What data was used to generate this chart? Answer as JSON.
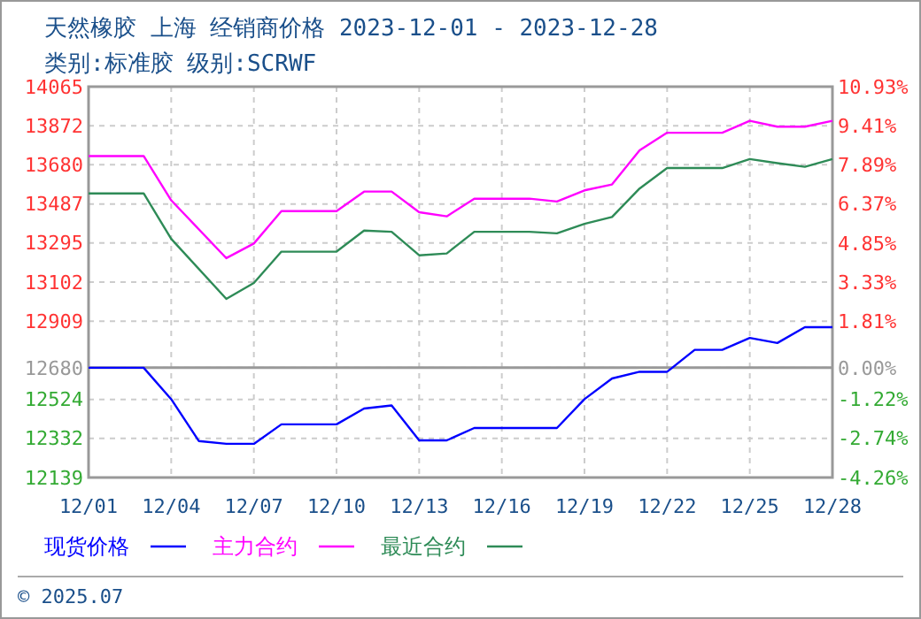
{
  "chart_data": {
    "type": "line",
    "title": "天然橡胶 上海 经销商价格 2023-12-01 - 2023-12-28",
    "subtitle": "类别:标准胶 级别:SCRWF",
    "xlim": [
      "2023-12-01",
      "2023-12-28"
    ],
    "xticks": [
      {
        "value": "2023-12-01",
        "label": "12/01"
      },
      {
        "value": "2023-12-04",
        "label": "12/04"
      },
      {
        "value": "2023-12-07",
        "label": "12/07"
      },
      {
        "value": "2023-12-10",
        "label": "12/10"
      },
      {
        "value": "2023-12-13",
        "label": "12/13"
      },
      {
        "value": "2023-12-16",
        "label": "12/16"
      },
      {
        "value": "2023-12-19",
        "label": "12/19"
      },
      {
        "value": "2023-12-22",
        "label": "12/22"
      },
      {
        "value": "2023-12-25",
        "label": "12/25"
      },
      {
        "value": "2023-12-28",
        "label": "12/28"
      }
    ],
    "ylim": [
      12139,
      14065
    ],
    "yticks": [
      12139,
      12332,
      12524,
      12680,
      12909,
      13102,
      13295,
      13487,
      13680,
      13872,
      14065
    ],
    "y2lim": [
      -4.26,
      10.93
    ],
    "y2ticks": [
      {
        "value": -4.26,
        "label": "-4.26%"
      },
      {
        "value": -2.74,
        "label": "-2.74%"
      },
      {
        "value": -1.22,
        "label": "-1.22%"
      },
      {
        "value": 0,
        "label": "0.00%"
      },
      {
        "value": 1.81,
        "label": "1.81%"
      },
      {
        "value": 3.33,
        "label": "3.33%"
      },
      {
        "value": 4.85,
        "label": "4.85%"
      },
      {
        "value": 6.37,
        "label": "6.37%"
      },
      {
        "value": 7.89,
        "label": "7.89%"
      },
      {
        "value": 9.41,
        "label": "9.41%"
      },
      {
        "value": 10.93,
        "label": "10.93%"
      }
    ],
    "grid": true,
    "legend": "bottom",
    "marker": "none",
    "line_style": "solid",
    "ref_lines": [
      {
        "axis": "y",
        "value": 12680,
        "color": "#999999"
      }
    ],
    "series": [
      {
        "name": "现货价格",
        "color": "#0000ff",
        "x": [
          "2023-12-01",
          "2023-12-03",
          "2023-12-04",
          "2023-12-05",
          "2023-12-06",
          "2023-12-07",
          "2023-12-08",
          "2023-12-10",
          "2023-12-11",
          "2023-12-12",
          "2023-12-13",
          "2023-12-14",
          "2023-12-15",
          "2023-12-18",
          "2023-12-19",
          "2023-12-20",
          "2023-12-21",
          "2023-12-22",
          "2023-12-23",
          "2023-12-24",
          "2023-12-25",
          "2023-12-26",
          "2023-12-27",
          "2023-12-28"
        ],
        "values": [
          12680,
          12680,
          12525,
          12319,
          12305,
          12305,
          12401,
          12401,
          12479,
          12494,
          12322,
          12322,
          12383,
          12383,
          12525,
          12627,
          12660,
          12660,
          12768,
          12768,
          12827,
          12802,
          12880,
          12880
        ]
      },
      {
        "name": "主力合约",
        "color": "#ff00ff",
        "x": [
          "2023-12-01",
          "2023-12-03",
          "2023-12-04",
          "2023-12-06",
          "2023-12-07",
          "2023-12-08",
          "2023-12-10",
          "2023-12-11",
          "2023-12-12",
          "2023-12-13",
          "2023-12-14",
          "2023-12-15",
          "2023-12-17",
          "2023-12-18",
          "2023-12-19",
          "2023-12-20",
          "2023-12-21",
          "2023-12-22",
          "2023-12-24",
          "2023-12-25",
          "2023-12-26",
          "2023-12-27",
          "2023-12-28"
        ],
        "values": [
          13723,
          13723,
          13505,
          13220,
          13292,
          13452,
          13452,
          13548,
          13548,
          13446,
          13426,
          13513,
          13513,
          13499,
          13554,
          13583,
          13751,
          13838,
          13838,
          13897,
          13868,
          13868,
          13897
        ]
      },
      {
        "name": "最近合约",
        "color": "#2e8b57",
        "x": [
          "2023-12-01",
          "2023-12-03",
          "2023-12-04",
          "2023-12-06",
          "2023-12-07",
          "2023-12-08",
          "2023-12-10",
          "2023-12-11",
          "2023-12-12",
          "2023-12-13",
          "2023-12-14",
          "2023-12-15",
          "2023-12-17",
          "2023-12-18",
          "2023-12-19",
          "2023-12-20",
          "2023-12-21",
          "2023-12-22",
          "2023-12-24",
          "2023-12-25",
          "2023-12-26",
          "2023-12-27",
          "2023-12-28"
        ],
        "values": [
          13539,
          13539,
          13315,
          13019,
          13098,
          13252,
          13252,
          13356,
          13350,
          13234,
          13243,
          13350,
          13350,
          13342,
          13389,
          13423,
          13563,
          13664,
          13664,
          13708,
          13688,
          13670,
          13708
        ]
      }
    ],
    "annotations": [
      "© 2025.07"
    ]
  }
}
